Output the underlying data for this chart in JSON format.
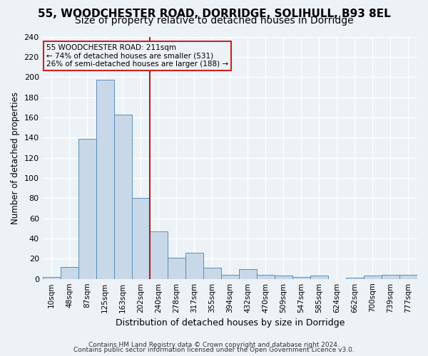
{
  "title": "55, WOODCHESTER ROAD, DORRIDGE, SOLIHULL, B93 8EL",
  "subtitle": "Size of property relative to detached houses in Dorridge",
  "xlabel": "Distribution of detached houses by size in Dorridge",
  "ylabel": "Number of detached properties",
  "bar_labels": [
    "10sqm",
    "48sqm",
    "87sqm",
    "125sqm",
    "163sqm",
    "202sqm",
    "240sqm",
    "278sqm",
    "317sqm",
    "355sqm",
    "394sqm",
    "432sqm",
    "470sqm",
    "509sqm",
    "547sqm",
    "585sqm",
    "624sqm",
    "662sqm",
    "700sqm",
    "739sqm",
    "777sqm"
  ],
  "bar_values": [
    2,
    12,
    139,
    197,
    163,
    80,
    47,
    21,
    26,
    11,
    4,
    10,
    4,
    3,
    2,
    3,
    0,
    1,
    3,
    4,
    4
  ],
  "bar_color": "#c8d8e8",
  "bar_edge_color": "#5b8db8",
  "vline_x": 5.5,
  "vline_color": "#aa2222",
  "annotation_lines": [
    "55 WOODCHESTER ROAD: 211sqm",
    "← 74% of detached houses are smaller (531)",
    "26% of semi-detached houses are larger (188) →"
  ],
  "annotation_box_color": "#cc2222",
  "ylim": [
    0,
    240
  ],
  "yticks": [
    0,
    20,
    40,
    60,
    80,
    100,
    120,
    140,
    160,
    180,
    200,
    220,
    240
  ],
  "footer1": "Contains HM Land Registry data © Crown copyright and database right 2024.",
  "footer2": "Contains public sector information licensed under the Open Government Licence v3.0.",
  "background_color": "#edf2f7",
  "grid_color": "#ffffff",
  "title_fontsize": 11,
  "subtitle_fontsize": 10
}
